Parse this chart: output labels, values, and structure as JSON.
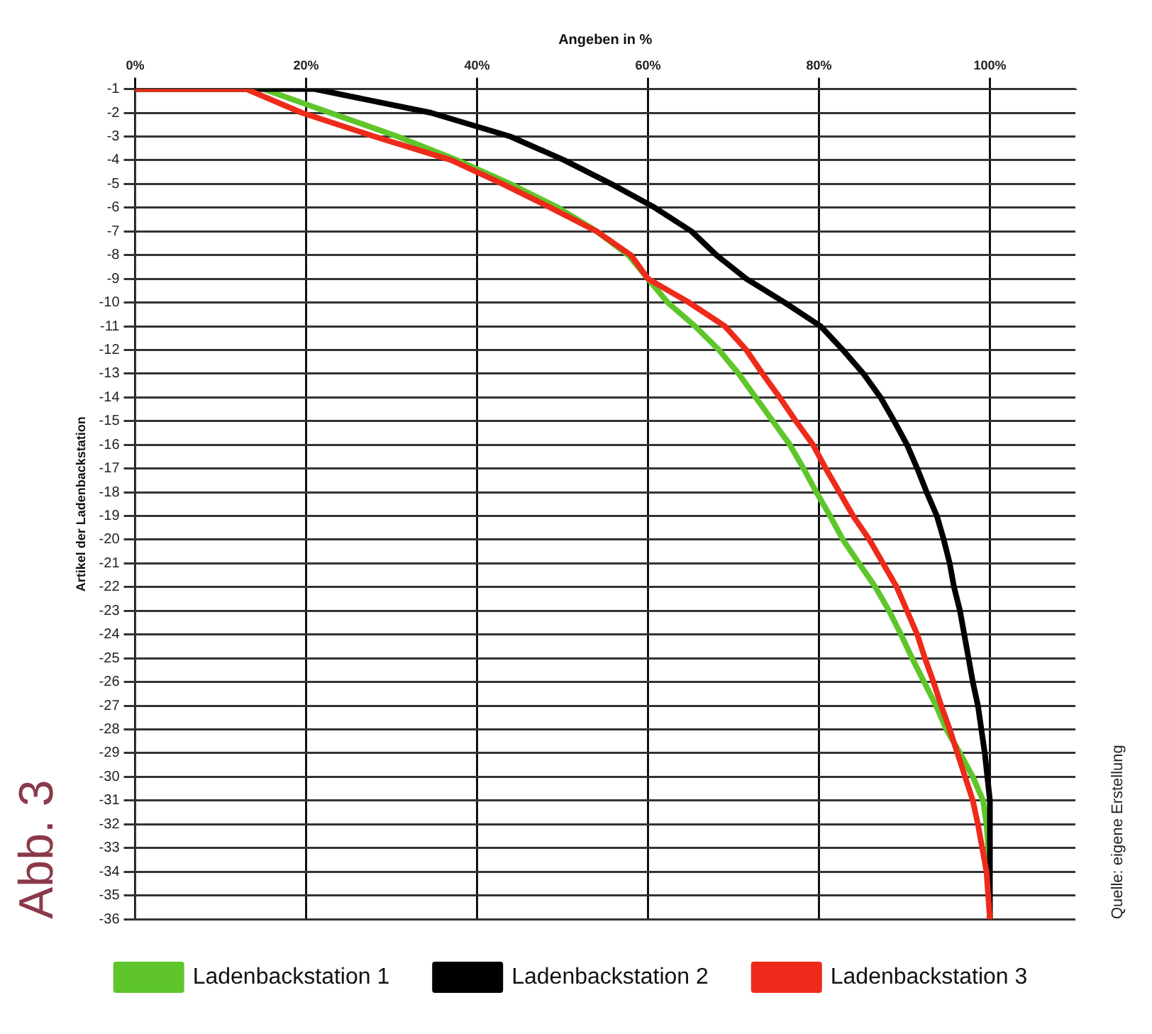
{
  "chart_data": {
    "type": "line",
    "xlabel": "Angeben in %",
    "ylabel": "Artikel der Ladenbackstation",
    "xlim": [
      0,
      110
    ],
    "xticks": [
      {
        "value": 0,
        "label": "0%"
      },
      {
        "value": 20,
        "label": "20%"
      },
      {
        "value": 40,
        "label": "40%"
      },
      {
        "value": 60,
        "label": "60%"
      },
      {
        "value": 80,
        "label": "80%"
      },
      {
        "value": 100,
        "label": "100%"
      }
    ],
    "ylim": [
      -36,
      -1
    ],
    "yticks": [
      -1,
      -2,
      -3,
      -4,
      -5,
      -6,
      -7,
      -8,
      -9,
      -10,
      -11,
      -12,
      -13,
      -14,
      -15,
      -16,
      -17,
      -18,
      -19,
      -20,
      -21,
      -22,
      -23,
      -24,
      -25,
      -26,
      -27,
      -28,
      -29,
      -30,
      -31,
      -32,
      -33,
      -34,
      -35,
      -36
    ],
    "grid": true,
    "legend": "bottom",
    "marker": "none",
    "line_style": "solid",
    "annotations": [
      "Abb. 3",
      "Quelle: eigene Erstellung"
    ],
    "series": [
      {
        "name": "Ladenbackstation 1",
        "color": "#5ec62a",
        "x": [
          0,
          15,
          22.8,
          30.7,
          37.7,
          43.9,
          49.5,
          54,
          57.7,
          60,
          62.3,
          65.5,
          68.3,
          70.6,
          72.6,
          74.6,
          76.6,
          78.2,
          79.7,
          81.3,
          82.8,
          84.7,
          86.6,
          88.2,
          89.6,
          90.9,
          92.3,
          93.7,
          94.9,
          96.5,
          98,
          99.2,
          99.6,
          99.8,
          100
        ],
        "values": [
          -1,
          -1,
          -2,
          -3,
          -4,
          -5,
          -6,
          -7,
          -8,
          -9,
          -10,
          -11,
          -12,
          -13,
          -14,
          -15,
          -16,
          -17,
          -18,
          -19,
          -20,
          -21,
          -22,
          -23,
          -24,
          -25,
          -26,
          -27,
          -28,
          -29,
          -30,
          -31,
          -32,
          -33,
          -36
        ]
      },
      {
        "name": "Ladenbackstation 2",
        "color": "#000000",
        "x": [
          0,
          21,
          34.6,
          43.9,
          50.2,
          55.7,
          60.8,
          65.1,
          68,
          71.5,
          76,
          80.2,
          82.8,
          85.2,
          87.2,
          88.8,
          90.3,
          91.5,
          92.6,
          93.8,
          94.6,
          95.3,
          95.8,
          96.5,
          97,
          97.5,
          98,
          98.6,
          99,
          99.4,
          99.7,
          100,
          100
        ],
        "values": [
          -1,
          -1,
          -2,
          -3,
          -4,
          -5,
          -6,
          -7,
          -8,
          -9,
          -10,
          -11,
          -12,
          -13,
          -14,
          -15,
          -16,
          -17,
          -18,
          -19,
          -20,
          -21,
          -22,
          -23,
          -24,
          -25,
          -26,
          -27,
          -28,
          -29,
          -30,
          -31,
          -36
        ]
      },
      {
        "name": "Ladenbackstation 3",
        "color": "#ee2a1a",
        "x": [
          0,
          13,
          19.5,
          28,
          37,
          43,
          48.6,
          54,
          58,
          60,
          64.8,
          69,
          71.5,
          73.4,
          75.4,
          77.3,
          79.3,
          80.8,
          82.4,
          84,
          85.9,
          87.5,
          89.1,
          90.3,
          91.5,
          92.4,
          93.4,
          94.3,
          95.3,
          96.2,
          97.1,
          98,
          98.6,
          99.1,
          99.6,
          99.8,
          100
        ],
        "values": [
          -1,
          -1,
          -2,
          -3,
          -4,
          -5,
          -6,
          -7,
          -8,
          -9,
          -10,
          -11,
          -12,
          -13,
          -14,
          -15,
          -16,
          -17,
          -18,
          -19,
          -20,
          -21,
          -22,
          -23,
          -24,
          -25,
          -26,
          -27,
          -28,
          -29,
          -30,
          -31,
          -32,
          -33,
          -34,
          -35,
          -36
        ]
      }
    ]
  }
}
